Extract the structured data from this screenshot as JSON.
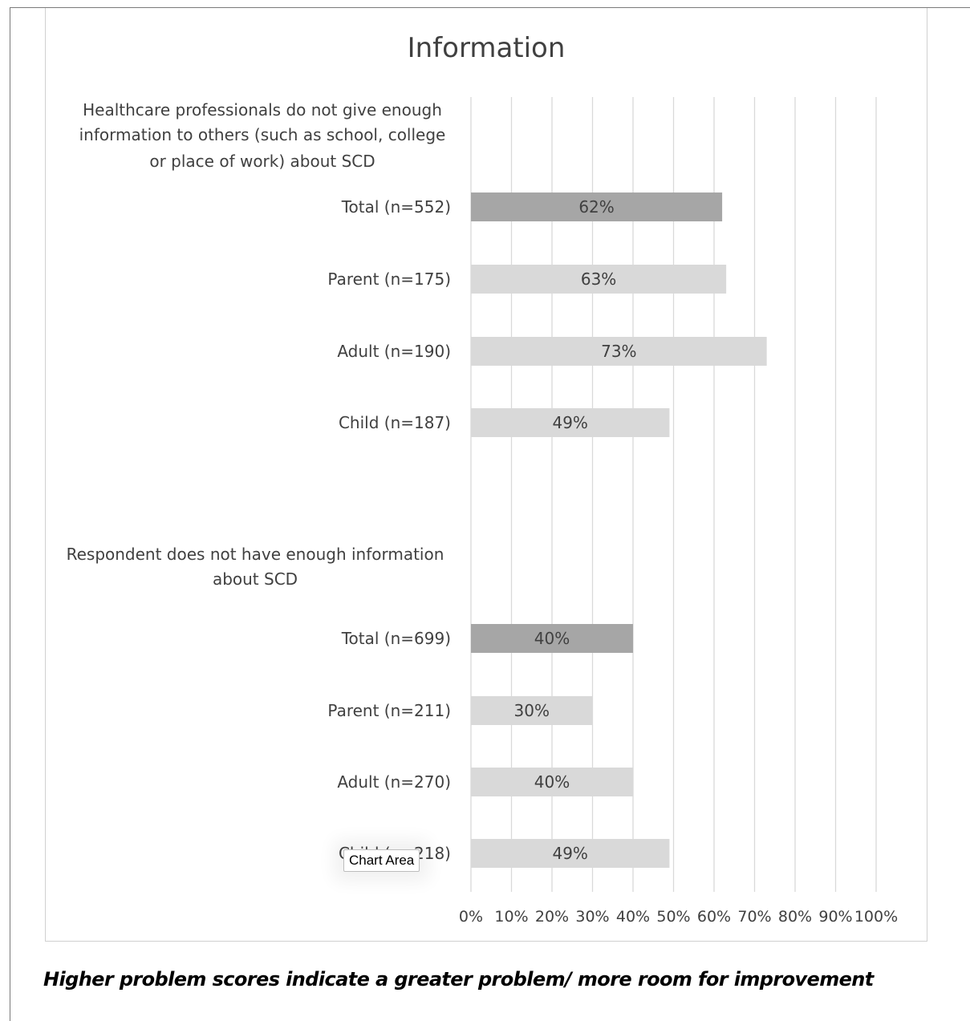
{
  "chart_data": {
    "type": "bar",
    "orientation": "horizontal",
    "title": "Information",
    "groups": [
      {
        "heading": [
          "Healthcare professionals  do not give enough",
          "information to others (such as school, college",
          "or place of work) about SCD"
        ],
        "bars": [
          {
            "label": "Total (n=552)",
            "value": 62,
            "value_label": "62%",
            "kind": "total"
          },
          {
            "label": "Parent (n=175)",
            "value": 63,
            "value_label": "63%",
            "kind": "sub"
          },
          {
            "label": "Adult (n=190)",
            "value": 73,
            "value_label": "73%",
            "kind": "sub"
          },
          {
            "label": "Child (n=187)",
            "value": 49,
            "value_label": "49%",
            "kind": "sub"
          }
        ]
      },
      {
        "heading": [
          "Respondent does not have enough information",
          "about SCD"
        ],
        "bars": [
          {
            "label": "Total (n=699)",
            "value": 40,
            "value_label": "40%",
            "kind": "total"
          },
          {
            "label": "Parent (n=211)",
            "value": 30,
            "value_label": "30%",
            "kind": "sub"
          },
          {
            "label": "Adult (n=270)",
            "value": 40,
            "value_label": "40%",
            "kind": "sub"
          },
          {
            "label": "Child (n=218)",
            "value": 49,
            "value_label": "49%",
            "kind": "sub"
          }
        ]
      }
    ],
    "x_ticks": [
      "0%",
      "10%",
      "20%",
      "30%",
      "40%",
      "50%",
      "60%",
      "70%",
      "80%",
      "90%",
      "100%"
    ],
    "xlim": [
      0,
      100
    ],
    "grid": "vertical",
    "legend": "none",
    "colors": {
      "total": "#a6a6a6",
      "sub": "#d9d9d9",
      "grid": "#d9d9d9",
      "text": "#404040"
    }
  },
  "footnote": "Higher problem scores indicate a greater problem/ more room for improvement",
  "tooltip": {
    "label": "Chart Area"
  }
}
